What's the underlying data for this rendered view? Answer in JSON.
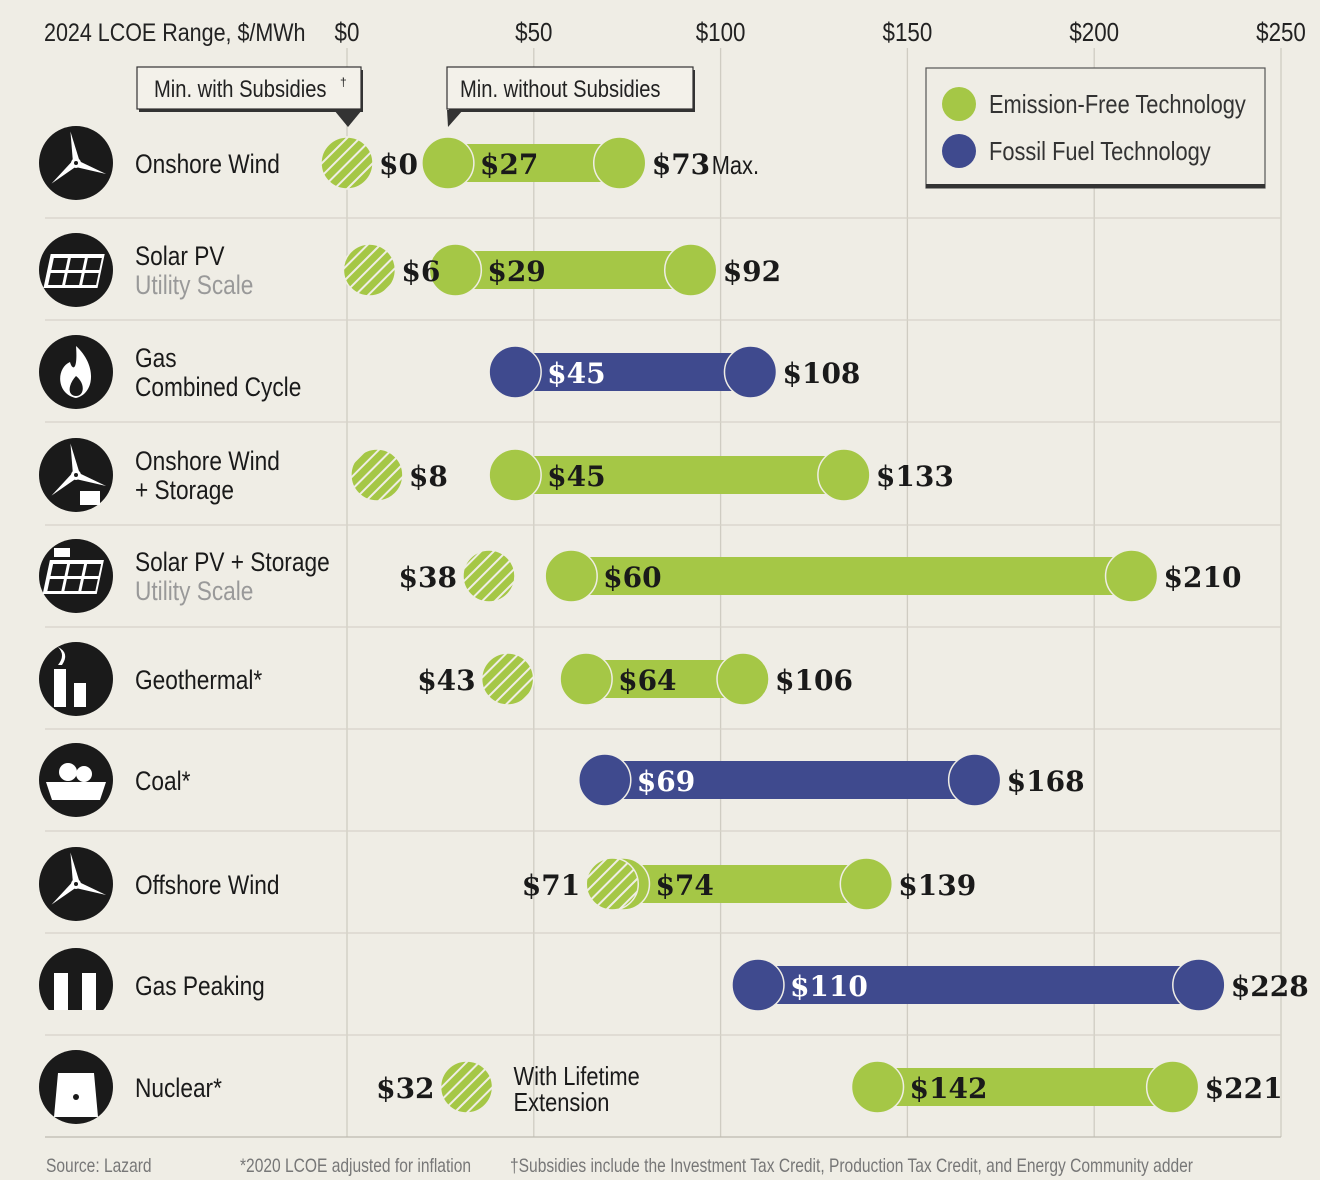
{
  "chart_data": {
    "type": "range-bar",
    "title": "2024 LCOE Range, $/MWh",
    "xlim": [
      0,
      250
    ],
    "xticks": [
      0,
      50,
      100,
      150,
      200,
      250
    ],
    "xtick_labels": [
      "$0",
      "$50",
      "$100",
      "$150",
      "$200",
      "$250"
    ],
    "grid": true,
    "callouts": {
      "with_subsidies": "Min. with Subsidies",
      "with_subsidies_mark": "†",
      "without_subsidies": "Min. without Subsidies"
    },
    "max_suffix": "Max.",
    "legend": {
      "placement": "top-right",
      "items": [
        {
          "label": "Emission-Free Technology",
          "color": "#a5c746"
        },
        {
          "label": "Fossil Fuel Technology",
          "color": "#3f4a8e"
        }
      ]
    },
    "rows": [
      {
        "name": "Onshore Wind",
        "sub": "",
        "icon": "wind-turbine-icon",
        "type": "emission-free",
        "min": 27,
        "max": 73,
        "subsidized": 0,
        "sub_label_side": "right"
      },
      {
        "name": "Solar PV",
        "sub": "Utility Scale",
        "icon": "solar-panel-icon",
        "type": "emission-free",
        "min": 29,
        "max": 92,
        "subsidized": 6,
        "sub_label_side": "right"
      },
      {
        "name": "Gas",
        "name2": "Combined Cycle",
        "sub": "",
        "icon": "flame-icon",
        "type": "fossil",
        "min": 45,
        "max": 108,
        "subsidized": null
      },
      {
        "name": "Onshore Wind",
        "name2": "+ Storage",
        "sub": "",
        "icon": "wind-storage-icon",
        "type": "emission-free",
        "min": 45,
        "max": 133,
        "subsidized": 8,
        "sub_label_side": "right"
      },
      {
        "name": "Solar PV + Storage",
        "sub": "Utility Scale",
        "icon": "solar-storage-icon",
        "type": "emission-free",
        "min": 60,
        "max": 210,
        "subsidized": 38,
        "sub_label_side": "left"
      },
      {
        "name": "Geothermal*",
        "sub": "",
        "icon": "geothermal-icon",
        "type": "emission-free",
        "min": 64,
        "max": 106,
        "subsidized": 43,
        "sub_label_side": "left"
      },
      {
        "name": "Coal*",
        "sub": "",
        "icon": "coal-icon",
        "type": "fossil",
        "min": 69,
        "max": 168,
        "subsidized": null
      },
      {
        "name": "Offshore Wind",
        "sub": "",
        "icon": "offshore-wind-icon",
        "type": "emission-free",
        "min": 74,
        "max": 139,
        "subsidized": 71,
        "sub_label_side": "left"
      },
      {
        "name": "Gas Peaking",
        "sub": "",
        "icon": "factory-icon",
        "type": "fossil",
        "min": 110,
        "max": 228,
        "subsidized": null
      },
      {
        "name": "Nuclear*",
        "sub": "",
        "icon": "nuclear-icon",
        "type": "emission-free",
        "min": 142,
        "max": 221,
        "subsidized": 32,
        "sub_label_side": "left",
        "note": [
          "With Lifetime",
          "Extension"
        ]
      }
    ]
  },
  "footer": {
    "source": "Source: Lazard",
    "note1": "*2020 LCOE adjusted for inflation",
    "note2": "†Subsidies include the Investment Tax Credit, Production Tax Credit, and Energy Community adder"
  }
}
